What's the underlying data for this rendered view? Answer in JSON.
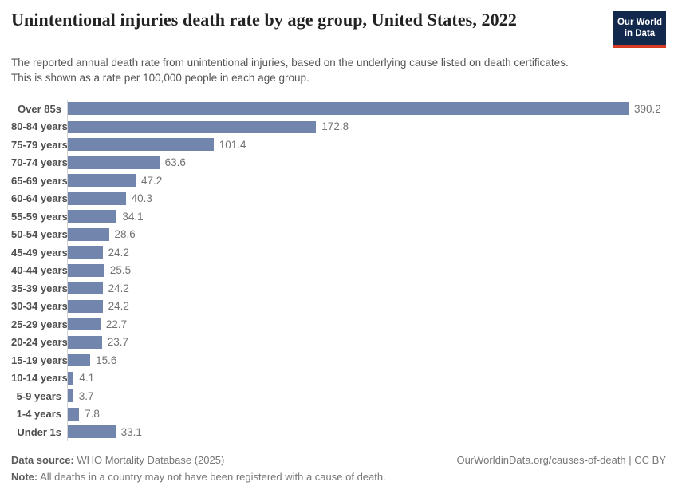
{
  "header": {
    "title": "Unintentional injuries death rate by age group, United States, 2022",
    "subtitle": "The reported annual death rate from unintentional injuries, based on the underlying cause listed on death certificates. This is shown as a rate per 100,000 people in each age group.",
    "logo": {
      "line1": "Our World",
      "line2": "in Data",
      "bg_color": "#12294d",
      "stripe_color": "#d63a23"
    }
  },
  "chart_data": {
    "type": "bar",
    "orientation": "horizontal",
    "title": "Unintentional injuries death rate by age group, United States, 2022",
    "xlabel": "",
    "ylabel": "",
    "xlim": [
      0,
      390.2
    ],
    "grid": false,
    "value_labels": true,
    "bar_color": "#7286ad",
    "categories": [
      "Over 85s",
      "80-84 years",
      "75-79 years",
      "70-74 years",
      "65-69 years",
      "60-64 years",
      "55-59 years",
      "50-54 years",
      "45-49 years",
      "40-44 years",
      "35-39 years",
      "30-34 years",
      "25-29 years",
      "20-24 years",
      "15-19 years",
      "10-14 years",
      "5-9 years",
      "1-4 years",
      "Under 1s"
    ],
    "values": [
      390.2,
      172.8,
      101.4,
      63.6,
      47.2,
      40.3,
      34.1,
      28.6,
      24.2,
      25.5,
      24.2,
      24.2,
      22.7,
      23.7,
      15.6,
      4.1,
      3.7,
      7.8,
      33.1
    ]
  },
  "footer": {
    "datasource_label": "Data source:",
    "datasource_text": " WHO Mortality Database (2025)",
    "note_label": "Note:",
    "note_text": " All deaths in a country may not have been registered with a cause of death.",
    "right_text": "OurWorldinData.org/causes-of-death | CC BY"
  }
}
